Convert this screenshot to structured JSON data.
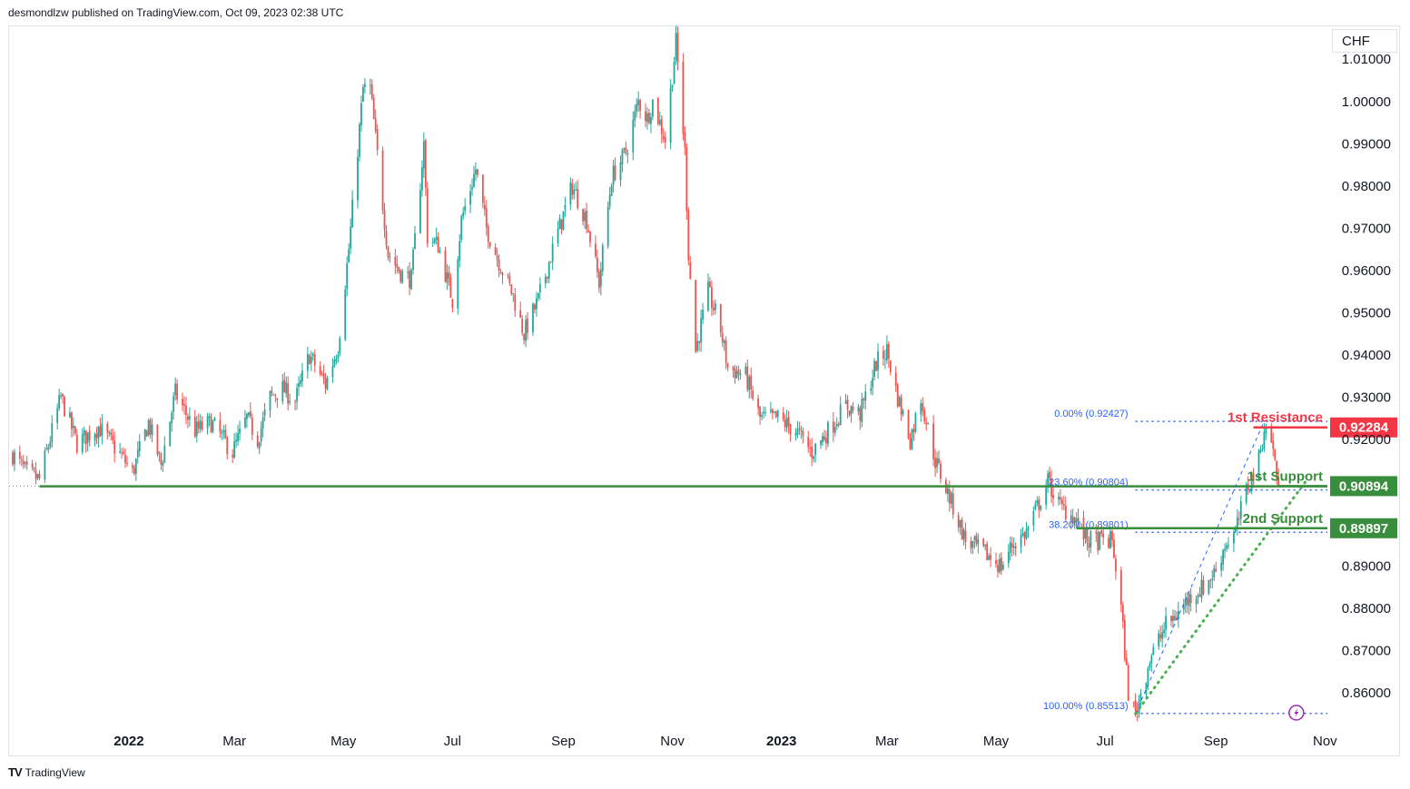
{
  "header": {
    "attribution": "desmondlzw published on TradingView.com, Oct 09, 2023 02:38 UTC"
  },
  "currency": "CHF",
  "footer": {
    "brand": "TradingView",
    "logo": "TV"
  },
  "colors": {
    "up": "#26a69a",
    "down": "#ef5350",
    "resistance": "#f23645",
    "support": "#388e3c",
    "fib": "#2962ff",
    "trend": "#4caf50"
  },
  "chart_data": {
    "type": "candlestick",
    "ylim": [
      0.8525,
      1.0165
    ],
    "y_ticks": [
      {
        "value": 1.01,
        "label": "1.01000"
      },
      {
        "value": 1.0,
        "label": "1.00000"
      },
      {
        "value": 0.99,
        "label": "0.99000"
      },
      {
        "value": 0.98,
        "label": "0.98000"
      },
      {
        "value": 0.97,
        "label": "0.97000"
      },
      {
        "value": 0.96,
        "label": "0.96000"
      },
      {
        "value": 0.95,
        "label": "0.95000"
      },
      {
        "value": 0.94,
        "label": "0.94000"
      },
      {
        "value": 0.93,
        "label": "0.93000"
      },
      {
        "value": 0.92,
        "label": "0.92000"
      },
      {
        "value": 0.89,
        "label": "0.89000"
      },
      {
        "value": 0.88,
        "label": "0.88000"
      },
      {
        "value": 0.87,
        "label": "0.87000"
      },
      {
        "value": 0.86,
        "label": "0.86000"
      }
    ],
    "x_ticks": [
      {
        "date": "2022-01-01",
        "label": "2022",
        "bold": true
      },
      {
        "date": "2022-03-01",
        "label": "Mar",
        "bold": false
      },
      {
        "date": "2022-05-01",
        "label": "May",
        "bold": false
      },
      {
        "date": "2022-07-01",
        "label": "Jul",
        "bold": false
      },
      {
        "date": "2022-09-01",
        "label": "Sep",
        "bold": false
      },
      {
        "date": "2022-11-01",
        "label": "Nov",
        "bold": false
      },
      {
        "date": "2023-01-01",
        "label": "2023",
        "bold": true
      },
      {
        "date": "2023-03-01",
        "label": "Mar",
        "bold": false
      },
      {
        "date": "2023-05-01",
        "label": "May",
        "bold": false
      },
      {
        "date": "2023-07-01",
        "label": "Jul",
        "bold": false
      },
      {
        "date": "2023-09-01",
        "label": "Sep",
        "bold": false
      },
      {
        "date": "2023-11-01",
        "label": "Nov",
        "bold": false
      }
    ],
    "price_path": [
      [
        "2021-10-28",
        0.9165
      ],
      [
        "2021-11-05",
        0.912
      ],
      [
        "2021-11-12",
        0.9105
      ],
      [
        "2021-11-24",
        0.93
      ],
      [
        "2021-12-03",
        0.919
      ],
      [
        "2021-12-15",
        0.923
      ],
      [
        "2021-12-28",
        0.916
      ],
      [
        "2022-01-03",
        0.912
      ],
      [
        "2022-01-12",
        0.924
      ],
      [
        "2022-01-19",
        0.914
      ],
      [
        "2022-01-27",
        0.931
      ],
      [
        "2022-02-07",
        0.922
      ],
      [
        "2022-02-16",
        0.924
      ],
      [
        "2022-02-28",
        0.917
      ],
      [
        "2022-03-08",
        0.925
      ],
      [
        "2022-03-14",
        0.92
      ],
      [
        "2022-03-21",
        0.93
      ],
      [
        "2022-03-28",
        0.932
      ],
      [
        "2022-04-04",
        0.929
      ],
      [
        "2022-04-12",
        0.94
      ],
      [
        "2022-04-21",
        0.933
      ],
      [
        "2022-04-28",
        0.942
      ],
      [
        "2022-05-04",
        0.965
      ],
      [
        "2022-05-12",
        1.003
      ],
      [
        "2022-05-16",
        1.003
      ],
      [
        "2022-05-26",
        0.964
      ],
      [
        "2022-06-03",
        0.959
      ],
      [
        "2022-06-08",
        0.958
      ],
      [
        "2022-06-15",
        0.99
      ],
      [
        "2022-06-17",
        0.968
      ],
      [
        "2022-06-23",
        0.966
      ],
      [
        "2022-07-01",
        0.953
      ],
      [
        "2022-07-06",
        0.972
      ],
      [
        "2022-07-14",
        0.984
      ],
      [
        "2022-07-20",
        0.97
      ],
      [
        "2022-07-27",
        0.962
      ],
      [
        "2022-08-04",
        0.954
      ],
      [
        "2022-08-10",
        0.945
      ],
      [
        "2022-08-18",
        0.953
      ],
      [
        "2022-08-26",
        0.965
      ],
      [
        "2022-09-06",
        0.98
      ],
      [
        "2022-09-14",
        0.972
      ],
      [
        "2022-09-21",
        0.957
      ],
      [
        "2022-09-28",
        0.982
      ],
      [
        "2022-10-06",
        0.988
      ],
      [
        "2022-10-13",
        1.0
      ],
      [
        "2022-10-18",
        0.996
      ],
      [
        "2022-10-21",
        1.0
      ],
      [
        "2022-10-28",
        0.991
      ],
      [
        "2022-11-03",
        1.014
      ],
      [
        "2022-11-08",
        0.988
      ],
      [
        "2022-11-10",
        0.964
      ],
      [
        "2022-11-14",
        0.941
      ],
      [
        "2022-11-21",
        0.955
      ],
      [
        "2022-11-28",
        0.946
      ],
      [
        "2022-12-02",
        0.937
      ],
      [
        "2022-12-12",
        0.935
      ],
      [
        "2022-12-20",
        0.925
      ],
      [
        "2022-12-30",
        0.925
      ],
      [
        "2023-01-09",
        0.922
      ],
      [
        "2023-01-18",
        0.917
      ],
      [
        "2023-01-27",
        0.922
      ],
      [
        "2023-02-06",
        0.928
      ],
      [
        "2023-02-14",
        0.926
      ],
      [
        "2023-02-23",
        0.938
      ],
      [
        "2023-03-01",
        0.941
      ],
      [
        "2023-03-07",
        0.93
      ],
      [
        "2023-03-14",
        0.92
      ],
      [
        "2023-03-20",
        0.93
      ],
      [
        "2023-03-28",
        0.915
      ],
      [
        "2023-04-07",
        0.904
      ],
      [
        "2023-04-14",
        0.896
      ],
      [
        "2023-04-25",
        0.893
      ],
      [
        "2023-05-04",
        0.89
      ],
      [
        "2023-05-10",
        0.895
      ],
      [
        "2023-05-18",
        0.898
      ],
      [
        "2023-05-30",
        0.91
      ],
      [
        "2023-06-06",
        0.904
      ],
      [
        "2023-06-13",
        0.902
      ],
      [
        "2023-06-21",
        0.896
      ],
      [
        "2023-06-28",
        0.896
      ],
      [
        "2023-07-05",
        0.896
      ],
      [
        "2023-07-10",
        0.88
      ],
      [
        "2023-07-14",
        0.86
      ],
      [
        "2023-07-18",
        0.8551
      ],
      [
        "2023-07-26",
        0.868
      ],
      [
        "2023-08-04",
        0.876
      ],
      [
        "2023-08-11",
        0.879
      ],
      [
        "2023-08-18",
        0.883
      ],
      [
        "2023-08-25",
        0.885
      ],
      [
        "2023-09-01",
        0.889
      ],
      [
        "2023-09-06",
        0.895
      ],
      [
        "2023-09-12",
        0.898
      ],
      [
        "2023-09-18",
        0.908
      ],
      [
        "2023-09-25",
        0.915
      ],
      [
        "2023-09-28",
        0.9228
      ],
      [
        "2023-10-02",
        0.92
      ],
      [
        "2023-10-06",
        0.9089
      ]
    ],
    "levels": [
      {
        "name": "1st Resistance",
        "value": 0.92284,
        "label": "0.92284",
        "kind": "resistance"
      },
      {
        "name": "1st Support",
        "value": 0.90894,
        "label": "0.90894",
        "kind": "support"
      },
      {
        "name": "2nd Support",
        "value": 0.89897,
        "label": "0.89897",
        "kind": "support"
      }
    ],
    "fib_levels": [
      {
        "label": "0.00% (0.92427)",
        "value": 0.92427
      },
      {
        "label": "23.60% (0.90804)",
        "value": 0.90804
      },
      {
        "label": "38.20% (0.89801)",
        "value": 0.89801
      },
      {
        "label": "100.00% (0.85513)",
        "value": 0.85513
      }
    ],
    "horizontal_support": 0.9089,
    "trendline": {
      "start": [
        "2023-07-18",
        0.8551
      ],
      "end": [
        "2023-10-22",
        0.9105
      ]
    },
    "fib_anchor": {
      "start": [
        "2023-07-18",
        0.8551
      ],
      "end": [
        "2023-09-28",
        0.9243
      ]
    }
  }
}
